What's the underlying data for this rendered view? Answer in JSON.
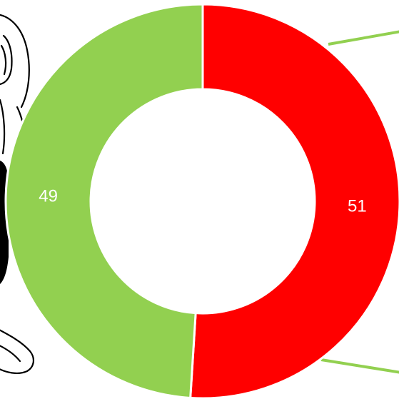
{
  "chart_data": {
    "type": "pie",
    "variant": "donut",
    "slices": [
      {
        "label": "51",
        "value": 51,
        "color": "#ff0000"
      },
      {
        "label": "49",
        "value": 49,
        "color": "#92d050"
      }
    ],
    "start_angle_deg": 0,
    "direction": "clockwise",
    "separator_color": "#ffffff",
    "accent_line_color": "#92d050",
    "decoration_icon": "person-illustration"
  }
}
